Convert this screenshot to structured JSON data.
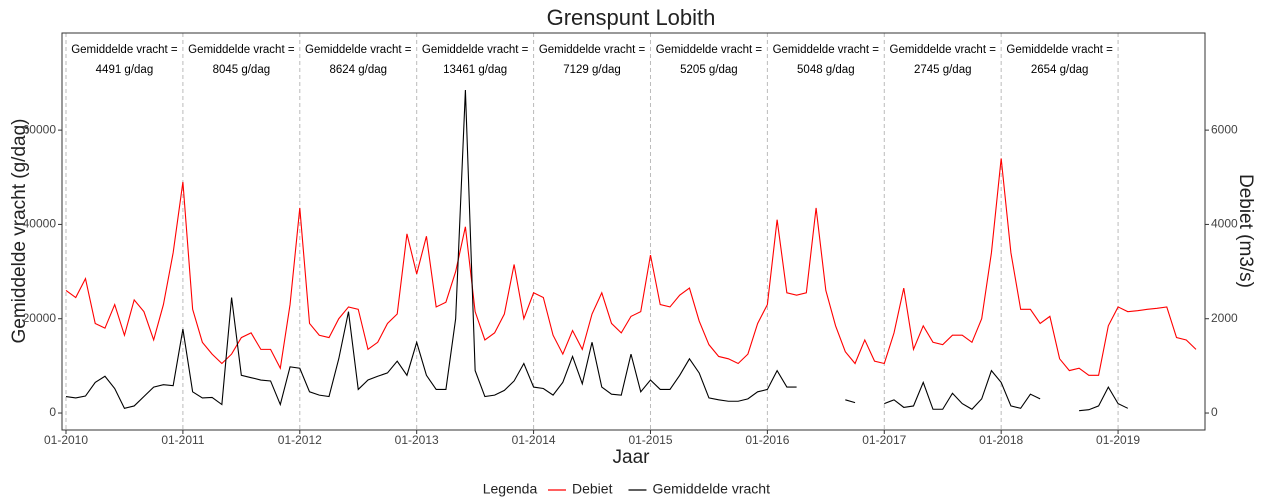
{
  "chart_data": {
    "type": "line",
    "title": "Grenspunt Lobith",
    "x_label": "Jaar",
    "y_label": "Gemiddelde vracht (g/dag)",
    "y2_label": "Debiet (m3/s)",
    "legend_title": "Legenda",
    "legend_position": "bottom",
    "annotation_title": "Gemiddelde vracht =",
    "annotation_values": [
      "4491 g/dag",
      "8045 g/dag",
      "8624 g/dag",
      "13461 g/dag",
      "7129 g/dag",
      "5205 g/dag",
      "5048 g/dag",
      "2745 g/dag",
      "2654 g/dag"
    ],
    "x": [
      "2010-01",
      "2010-02",
      "2010-03",
      "2010-04",
      "2010-05",
      "2010-06",
      "2010-07",
      "2010-08",
      "2010-09",
      "2010-10",
      "2010-11",
      "2010-12",
      "2011-01",
      "2011-02",
      "2011-03",
      "2011-04",
      "2011-05",
      "2011-06",
      "2011-07",
      "2011-08",
      "2011-09",
      "2011-10",
      "2011-11",
      "2011-12",
      "2012-01",
      "2012-02",
      "2012-03",
      "2012-04",
      "2012-05",
      "2012-06",
      "2012-07",
      "2012-08",
      "2012-09",
      "2012-10",
      "2012-11",
      "2012-12",
      "2013-01",
      "2013-02",
      "2013-03",
      "2013-04",
      "2013-05",
      "2013-06",
      "2013-07",
      "2013-08",
      "2013-09",
      "2013-10",
      "2013-11",
      "2013-12",
      "2014-01",
      "2014-02",
      "2014-03",
      "2014-04",
      "2014-05",
      "2014-06",
      "2014-07",
      "2014-08",
      "2014-09",
      "2014-10",
      "2014-11",
      "2014-12",
      "2015-01",
      "2015-02",
      "2015-03",
      "2015-04",
      "2015-05",
      "2015-06",
      "2015-07",
      "2015-08",
      "2015-09",
      "2015-10",
      "2015-11",
      "2015-12",
      "2016-01",
      "2016-02",
      "2016-03",
      "2016-04",
      "2016-05",
      "2016-06",
      "2016-07",
      "2016-08",
      "2016-09",
      "2016-10",
      "2016-11",
      "2016-12",
      "2017-01",
      "2017-02",
      "2017-03",
      "2017-04",
      "2017-05",
      "2017-06",
      "2017-07",
      "2017-08",
      "2017-09",
      "2017-10",
      "2017-11",
      "2017-12",
      "2018-01",
      "2018-02",
      "2018-03",
      "2018-04",
      "2018-05",
      "2018-06",
      "2018-07",
      "2018-08",
      "2018-09",
      "2018-10",
      "2018-11",
      "2018-12",
      "2019-01",
      "2019-02",
      "2019-03",
      "2019-04",
      "2019-05",
      "2019-06",
      "2019-07",
      "2019-08",
      "2019-09"
    ],
    "series": [
      {
        "name": "Debiet",
        "color": "#ff0000",
        "axis": "y2",
        "values": [
          2600,
          2450,
          2850,
          1900,
          1800,
          2300,
          1650,
          2400,
          2150,
          1550,
          2300,
          3400,
          4900,
          2200,
          1500,
          1250,
          1050,
          1250,
          1600,
          1700,
          1350,
          1350,
          950,
          2300,
          4350,
          1900,
          1650,
          1600,
          2000,
          2250,
          2200,
          1350,
          1500,
          1900,
          2100,
          3800,
          2950,
          3750,
          2250,
          2350,
          3000,
          3950,
          2150,
          1550,
          1700,
          2100,
          3150,
          2000,
          2550,
          2450,
          1650,
          1250,
          1750,
          1350,
          2100,
          2550,
          1900,
          1700,
          2050,
          2150,
          3350,
          2300,
          2250,
          2500,
          2650,
          1950,
          1450,
          1200,
          1150,
          1050,
          1250,
          1900,
          2300,
          4100,
          2550,
          2500,
          2550,
          4350,
          2600,
          1850,
          1300,
          1050,
          1550,
          1100,
          1050,
          1700,
          2650,
          1350,
          1850,
          1500,
          1450,
          1650,
          1650,
          1500,
          2000,
          3400,
          5400,
          3400,
          2200,
          2200,
          1900,
          2050,
          1150,
          900,
          950,
          800,
          800,
          1850,
          2250,
          2150,
          2170,
          2200,
          2220,
          2250,
          1600,
          1550,
          1350
        ]
      },
      {
        "name": "Gemiddelde vracht",
        "color": "#000000",
        "values": [
          3500,
          3200,
          3600,
          6500,
          7800,
          5200,
          1000,
          1500,
          3500,
          5500,
          6000,
          5800,
          17800,
          4500,
          3200,
          3300,
          1800,
          24500,
          8000,
          7500,
          7000,
          6800,
          1800,
          9800,
          9500,
          4500,
          3800,
          3500,
          11500,
          21500,
          5000,
          7000,
          7800,
          8500,
          11000,
          8000,
          15000,
          8000,
          5000,
          5000,
          20000,
          68500,
          9000,
          3500,
          3800,
          4800,
          6800,
          10500,
          5500,
          5200,
          3800,
          6500,
          12000,
          6200,
          15000,
          5500,
          4000,
          3800,
          12500,
          4500,
          7000,
          5000,
          5000,
          8000,
          11500,
          8500,
          3200,
          2800,
          2500,
          2500,
          3000,
          4500,
          5000,
          9000,
          5500,
          5500,
          null,
          null,
          null,
          null,
          2800,
          2200,
          null,
          null,
          2000,
          2800,
          1200,
          1500,
          6500,
          800,
          800,
          4200,
          2000,
          800,
          3000,
          9000,
          6500,
          1500,
          1000,
          4000,
          3000,
          null,
          null,
          null,
          500,
          700,
          1500,
          5500,
          2000,
          1000,
          null,
          null,
          null,
          null,
          null,
          null,
          null
        ]
      }
    ],
    "xlim": [
      "2010-01",
      "2019-09"
    ],
    "xticks": [
      {
        "value": "2010-01",
        "label": "01-2010"
      },
      {
        "value": "2011-01",
        "label": "01-2011"
      },
      {
        "value": "2012-01",
        "label": "01-2012"
      },
      {
        "value": "2013-01",
        "label": "01-2013"
      },
      {
        "value": "2014-01",
        "label": "01-2014"
      },
      {
        "value": "2015-01",
        "label": "01-2015"
      },
      {
        "value": "2016-01",
        "label": "01-2016"
      },
      {
        "value": "2017-01",
        "label": "01-2017"
      },
      {
        "value": "2018-01",
        "label": "01-2018"
      },
      {
        "value": "2019-01",
        "label": "01-2019"
      }
    ],
    "ylim": [
      -3600,
      80600
    ],
    "yticks": [
      0,
      20000,
      40000,
      60000
    ],
    "y2lim": [
      -360,
      8060
    ],
    "y2ticks": [
      0,
      2000,
      4000,
      6000
    ],
    "grid": "x-dashed"
  }
}
